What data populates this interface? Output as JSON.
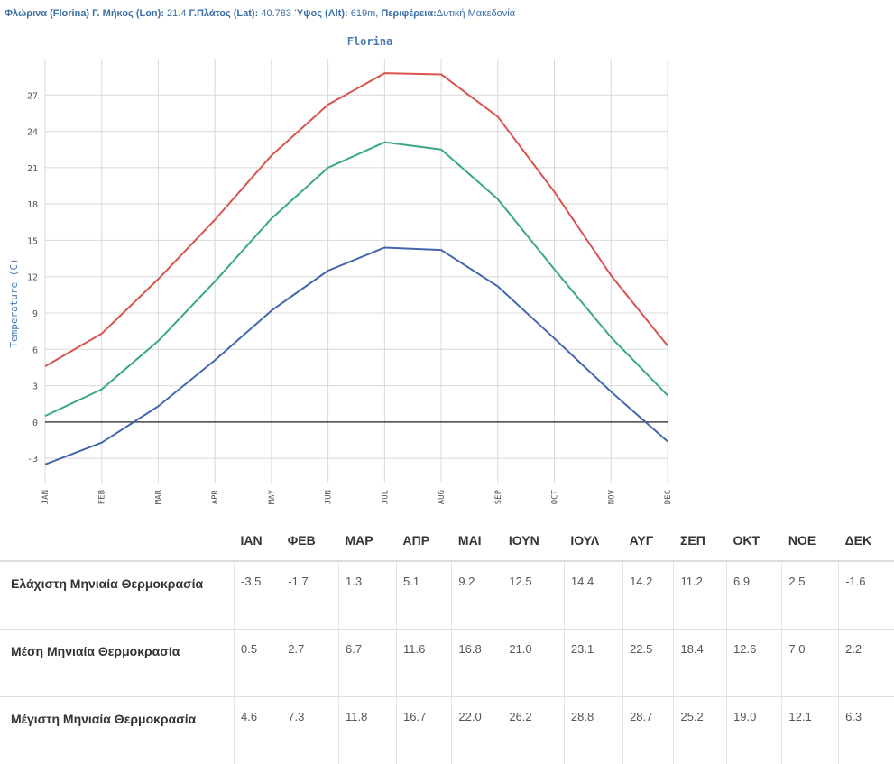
{
  "header": {
    "station_label": "Φλώρινα (Florina) Γ. Μήκος (Lon):",
    "lon": "21.4",
    "lat_label": "Γ.Πλάτος (Lat):",
    "lat": "40.783",
    "alt_label": "Ύψος (Alt):",
    "alt": "619m,",
    "region_label": "Περιφέρεια:",
    "region": "Δυτική Μακεδονία"
  },
  "chart_data": {
    "type": "line",
    "title": "Florina",
    "ylabel": "Temperature (C)",
    "xlabel": "",
    "categories": [
      "JAN",
      "FEB",
      "MAR",
      "APR",
      "MAY",
      "JUN",
      "JUL",
      "AUG",
      "SEP",
      "OCT",
      "NOV",
      "DEC"
    ],
    "ylim": [
      -5,
      30
    ],
    "yticks": [
      -3,
      0,
      3,
      6,
      9,
      12,
      15,
      18,
      21,
      24,
      27
    ],
    "grid": true,
    "series": [
      {
        "color": "#d9534f",
        "values": [
          4.6,
          7.3,
          11.8,
          16.7,
          22.0,
          26.2,
          28.8,
          28.7,
          25.2,
          19.0,
          12.1,
          6.3
        ]
      },
      {
        "color": "#3aa688",
        "values": [
          0.5,
          2.7,
          6.7,
          11.6,
          16.8,
          21.0,
          23.1,
          22.5,
          18.4,
          12.6,
          7.0,
          2.2
        ]
      },
      {
        "color": "#4466b0",
        "values": [
          -3.5,
          -1.7,
          1.3,
          5.1,
          9.2,
          12.5,
          14.4,
          14.2,
          11.2,
          6.9,
          2.5,
          -1.6
        ]
      }
    ]
  },
  "table": {
    "months": [
      "ΙΑΝ",
      "ΦΕΒ",
      "ΜΑΡ",
      "ΑΠΡ",
      "ΜΑΙ",
      "ΙΟΥΝ",
      "ΙΟΥΛ",
      "ΑΥΓ",
      "ΣΕΠ",
      "ΟΚΤ",
      "ΝΟΕ",
      "ΔΕΚ"
    ],
    "rows": [
      {
        "label": "Ελάχιστη Μηνιαία Θερμοκρασία",
        "values": [
          "-3.5",
          "-1.7",
          "1.3",
          "5.1",
          "9.2",
          "12.5",
          "14.4",
          "14.2",
          "11.2",
          "6.9",
          "2.5",
          "-1.6"
        ]
      },
      {
        "label": "Μέση Μηνιαία Θερμοκρασία",
        "values": [
          "0.5",
          "2.7",
          "6.7",
          "11.6",
          "16.8",
          "21.0",
          "23.1",
          "22.5",
          "18.4",
          "12.6",
          "7.0",
          "2.2"
        ]
      },
      {
        "label": "Μέγιστη Μηνιαία Θερμοκρασία",
        "values": [
          "4.6",
          "7.3",
          "11.8",
          "16.7",
          "22.0",
          "26.2",
          "28.8",
          "28.7",
          "25.2",
          "19.0",
          "12.1",
          "6.3"
        ]
      }
    ]
  }
}
